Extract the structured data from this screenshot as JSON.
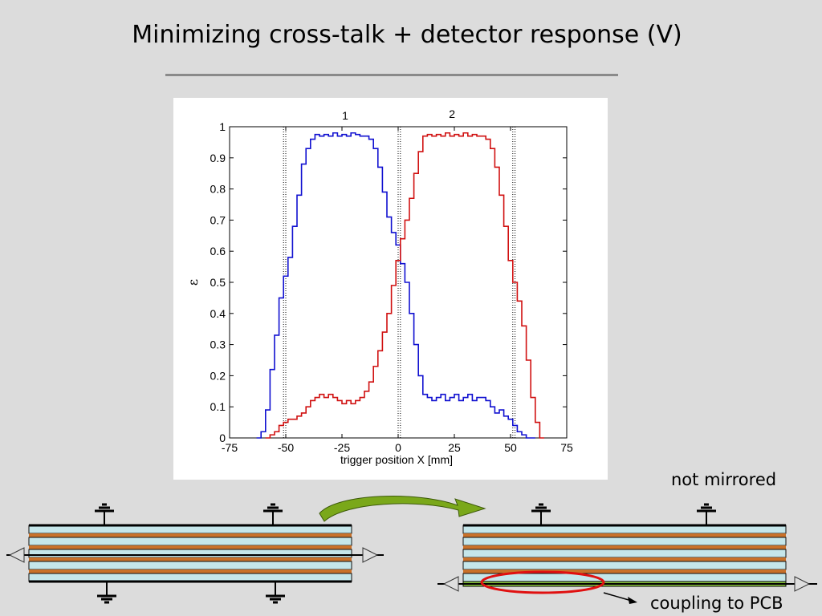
{
  "slide": {
    "title": "Minimizing cross-talk + detector response (V)",
    "note_mirrored": "not mirrored",
    "note_coupling": "coupling to PCB"
  },
  "chart_data": {
    "type": "line",
    "xlabel": "trigger position X [mm]",
    "ylabel": "ε",
    "xlim": [
      -75,
      75
    ],
    "ylim": [
      0,
      1
    ],
    "xticks": [
      "-75",
      "-50",
      "-25",
      "0",
      "25",
      "50",
      "75"
    ],
    "yticks": [
      "0",
      "0.1",
      "0.2",
      "0.3",
      "0.4",
      "0.5",
      "0.6",
      "0.7",
      "0.8",
      "0.9",
      "1"
    ],
    "annotations": [
      "1",
      "2"
    ],
    "vlines": [
      -50,
      -51,
      0,
      1,
      51,
      52
    ],
    "grid": false,
    "series": [
      {
        "color": "#1010d0",
        "x": [
          -63,
          -61,
          -59,
          -57,
          -55,
          -53,
          -51,
          -49,
          -47,
          -45,
          -43,
          -41,
          -39,
          -37,
          -35,
          -33,
          -31,
          -29,
          -27,
          -25,
          -23,
          -21,
          -19,
          -17,
          -15,
          -13,
          -11,
          -9,
          -7,
          -5,
          -3,
          -1,
          1,
          3,
          5,
          7,
          9,
          11,
          13,
          15,
          17,
          19,
          21,
          23,
          25,
          27,
          29,
          31,
          33,
          35,
          37,
          39,
          41,
          43,
          45,
          47,
          49,
          51,
          53,
          55,
          57,
          59
        ],
        "y": [
          0.0,
          0.02,
          0.09,
          0.22,
          0.33,
          0.45,
          0.52,
          0.58,
          0.68,
          0.78,
          0.88,
          0.93,
          0.96,
          0.975,
          0.97,
          0.975,
          0.97,
          0.98,
          0.97,
          0.975,
          0.97,
          0.98,
          0.975,
          0.97,
          0.97,
          0.96,
          0.93,
          0.87,
          0.79,
          0.71,
          0.66,
          0.62,
          0.56,
          0.5,
          0.4,
          0.3,
          0.2,
          0.14,
          0.13,
          0.12,
          0.13,
          0.14,
          0.12,
          0.13,
          0.14,
          0.12,
          0.13,
          0.14,
          0.12,
          0.13,
          0.13,
          0.12,
          0.1,
          0.08,
          0.09,
          0.07,
          0.06,
          0.04,
          0.02,
          0.01,
          0.0,
          0.0
        ]
      },
      {
        "color": "#d01010",
        "x": [
          -59,
          -57,
          -55,
          -53,
          -51,
          -49,
          -47,
          -45,
          -43,
          -41,
          -39,
          -37,
          -35,
          -33,
          -31,
          -29,
          -27,
          -25,
          -23,
          -21,
          -19,
          -17,
          -15,
          -13,
          -11,
          -9,
          -7,
          -5,
          -3,
          -1,
          1,
          3,
          5,
          7,
          9,
          11,
          13,
          15,
          17,
          19,
          21,
          23,
          25,
          27,
          29,
          31,
          33,
          35,
          37,
          39,
          41,
          43,
          45,
          47,
          49,
          51,
          53,
          55,
          57,
          59,
          61,
          63
        ],
        "y": [
          0.0,
          0.01,
          0.02,
          0.04,
          0.05,
          0.06,
          0.06,
          0.07,
          0.08,
          0.1,
          0.12,
          0.13,
          0.14,
          0.13,
          0.14,
          0.13,
          0.12,
          0.11,
          0.12,
          0.11,
          0.12,
          0.13,
          0.15,
          0.18,
          0.23,
          0.28,
          0.34,
          0.4,
          0.49,
          0.57,
          0.64,
          0.7,
          0.77,
          0.85,
          0.92,
          0.97,
          0.975,
          0.97,
          0.975,
          0.97,
          0.98,
          0.97,
          0.975,
          0.97,
          0.98,
          0.97,
          0.975,
          0.97,
          0.97,
          0.96,
          0.93,
          0.87,
          0.78,
          0.68,
          0.57,
          0.5,
          0.44,
          0.36,
          0.25,
          0.13,
          0.05,
          0.0
        ]
      }
    ]
  },
  "diagram": {
    "colors": {
      "layer_fill": "#c5e6ea",
      "layer_border": "#111111",
      "copper": "#c8712a",
      "pcb_green": "#8dc63f",
      "ellipse": "#e01010",
      "arrow_green": "#7aa81a"
    }
  }
}
